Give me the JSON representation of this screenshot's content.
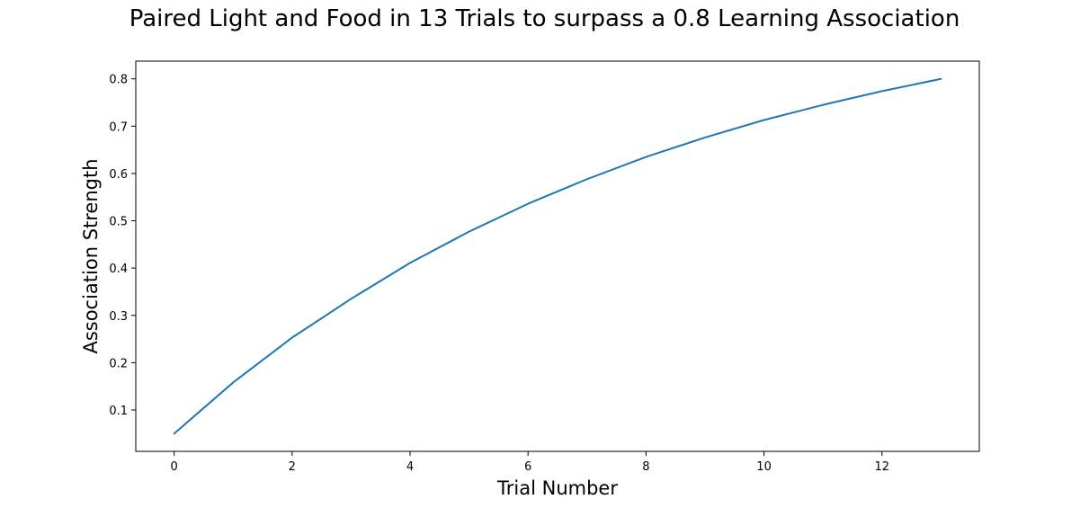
{
  "chart_data": {
    "type": "line",
    "title": "Paired Light and Food in 13 Trials to surpass a 0.8 Learning Association",
    "xlabel": "Trial Number",
    "ylabel": "Association Strength",
    "xlim": [
      -0.65,
      13.65
    ],
    "ylim": [
      0.0125,
      0.8375
    ],
    "xticks": [
      0,
      2,
      4,
      6,
      8,
      10,
      12
    ],
    "yticks": [
      0.1,
      0.2,
      0.3,
      0.4,
      0.5,
      0.6,
      0.7,
      0.8
    ],
    "grid": false,
    "series": [
      {
        "color": "#1f77b4",
        "x": [
          0,
          1,
          2,
          3,
          4,
          5,
          6,
          7,
          8,
          9,
          10,
          11,
          12,
          13
        ],
        "values": [
          0.05,
          0.158,
          0.253,
          0.335,
          0.411,
          0.477,
          0.536,
          0.588,
          0.635,
          0.676,
          0.713,
          0.745,
          0.774,
          0.8
        ]
      }
    ]
  }
}
